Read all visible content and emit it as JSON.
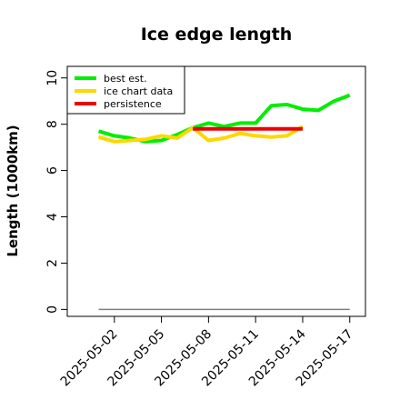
{
  "chart_data": {
    "type": "line",
    "title": "Ice edge length",
    "xlabel": "",
    "ylabel": "Length (1000km)",
    "x": [
      "2025-05-01",
      "2025-05-02",
      "2025-05-03",
      "2025-05-04",
      "2025-05-05",
      "2025-05-06",
      "2025-05-07",
      "2025-05-08",
      "2025-05-09",
      "2025-05-10",
      "2025-05-11",
      "2025-05-12",
      "2025-05-13",
      "2025-05-14",
      "2025-05-15",
      "2025-05-16",
      "2025-05-17"
    ],
    "xticks": [
      "2025-05-02",
      "2025-05-05",
      "2025-05-08",
      "2025-05-11",
      "2025-05-14",
      "2025-05-17"
    ],
    "yticks": [
      0,
      2,
      4,
      6,
      8,
      10
    ],
    "ylim": [
      -0.3,
      10.5
    ],
    "xlim": [
      "2025-04-29",
      "2025-05-18"
    ],
    "series": [
      {
        "name": "best est.",
        "color": "#00ee00",
        "x": [
          "2025-05-01",
          "2025-05-02",
          "2025-05-03",
          "2025-05-04",
          "2025-05-05",
          "2025-05-06",
          "2025-05-07",
          "2025-05-08",
          "2025-05-09",
          "2025-05-10",
          "2025-05-11",
          "2025-05-12",
          "2025-05-13",
          "2025-05-14",
          "2025-05-15",
          "2025-05-16",
          "2025-05-17"
        ],
        "values": [
          7.7,
          7.5,
          7.4,
          7.25,
          7.3,
          7.55,
          7.85,
          8.05,
          7.9,
          8.05,
          8.05,
          8.8,
          8.85,
          8.65,
          8.6,
          9.0,
          9.25
        ]
      },
      {
        "name": "ice chart data",
        "color": "#ffd700",
        "x": [
          "2025-05-01",
          "2025-05-02",
          "2025-05-03",
          "2025-05-04",
          "2025-05-05",
          "2025-05-06",
          "2025-05-07",
          "2025-05-08",
          "2025-05-09",
          "2025-05-10",
          "2025-05-11",
          "2025-05-12",
          "2025-05-13",
          "2025-05-14"
        ],
        "values": [
          7.45,
          7.25,
          7.3,
          7.35,
          7.5,
          7.4,
          7.85,
          7.3,
          7.4,
          7.6,
          7.5,
          7.45,
          7.5,
          7.9
        ]
      },
      {
        "name": "persistence",
        "color": "#ee0000",
        "x": [
          "2025-05-07",
          "2025-05-14"
        ],
        "values": [
          7.8,
          7.8
        ]
      },
      {
        "name": "",
        "color": "#808080",
        "x": [
          "2025-05-01",
          "2025-05-17"
        ],
        "values": [
          0,
          0
        ]
      }
    ],
    "legend_position": "top-left",
    "grid": false
  }
}
